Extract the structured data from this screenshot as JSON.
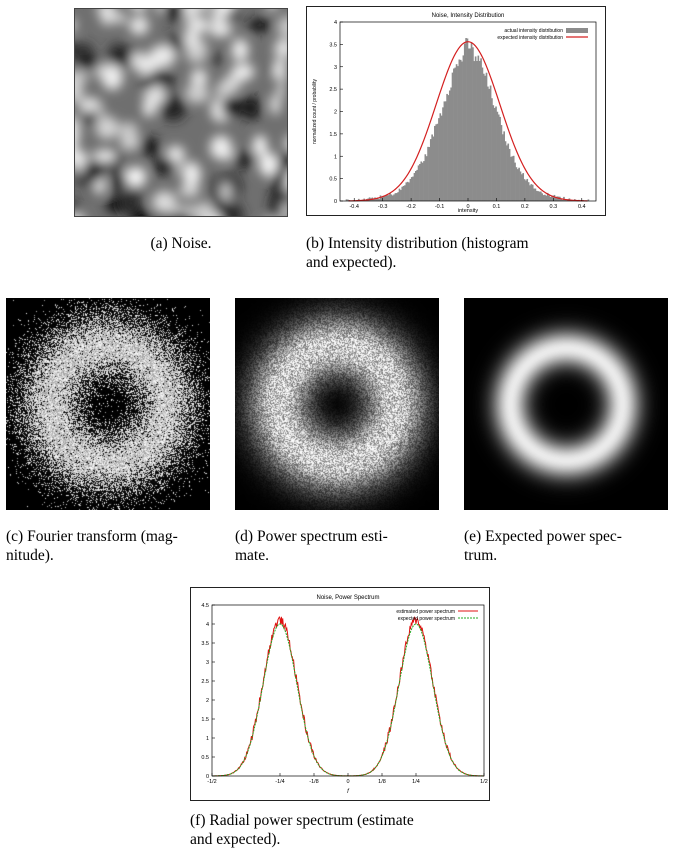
{
  "captions": {
    "a": "(a) Noise.",
    "b_line1": "(b) Intensity distribution (histogram",
    "b_line2": "and expected).",
    "c_line1": "(c) Fourier transform (mag-",
    "c_line2": "nitude).",
    "d_line1": "(d) Power spectrum esti-",
    "d_line2": "mate.",
    "e_line1": "(e) Expected power spec-",
    "e_line2": "trum.",
    "f_line1": "(f) Radial power spectrum (estimate",
    "f_line2": "and expected)."
  },
  "colors": {
    "histogram_fill": "#8c8c8c",
    "expected_curve": "#d42020",
    "estimated_curve": "#e01010",
    "expected_green": "#22aa22",
    "panel_background": "#000000"
  },
  "chart_data": [
    {
      "type": "bar",
      "title": "Noise, Intensity Distribution",
      "xlabel": "intensity",
      "ylabel": "normalized count / probability",
      "xlim": [
        -0.45,
        0.45
      ],
      "ylim": [
        0,
        4
      ],
      "xticks": [
        "-0.4",
        "-0.3",
        "-0.2",
        "-0.1",
        "0",
        "0.1",
        "0.2",
        "0.3",
        "0.4"
      ],
      "yticks": [
        "0",
        "0.5",
        "1",
        "1.5",
        "2",
        "2.5",
        "3",
        "3.5",
        "4"
      ],
      "legend_position": "top-right",
      "series": [
        {
          "name": "actual intensity distribution",
          "kind": "histogram",
          "x": [
            -0.4,
            -0.35,
            -0.3,
            -0.25,
            -0.2,
            -0.15,
            -0.1,
            -0.05,
            0,
            0.05,
            0.1,
            0.15,
            0.2,
            0.25,
            0.3,
            0.35,
            0.4
          ],
          "values": [
            0.0,
            0.04,
            0.1,
            0.18,
            0.5,
            1.0,
            1.9,
            2.9,
            3.5,
            3.0,
            2.0,
            1.05,
            0.5,
            0.2,
            0.1,
            0.04,
            0.0
          ]
        },
        {
          "name": "expected intensity distribution",
          "kind": "curve",
          "mean": 0,
          "std": 0.112,
          "peak": 3.56
        }
      ]
    },
    {
      "type": "line",
      "title": "Noise, Power Spectrum",
      "xlabel": "f",
      "ylabel": "",
      "xlim": [
        -0.5,
        0.5
      ],
      "ylim": [
        0,
        4.5
      ],
      "xticks": [
        "-1/2",
        "-1/4",
        "-1/8",
        "0",
        "1/8",
        "1/4",
        "1/2"
      ],
      "yticks": [
        "0",
        "0.5",
        "1",
        "1.5",
        "2",
        "2.5",
        "3",
        "3.5",
        "4",
        "4.5"
      ],
      "legend_position": "top-right",
      "series": [
        {
          "name": "estimated power spectrum",
          "peaks": [
            -0.25,
            0.25
          ],
          "peak_value": 4.1,
          "width": 0.062
        },
        {
          "name": "expected power spectrum",
          "peaks": [
            -0.25,
            0.25
          ],
          "peak_value": 4.0,
          "width": 0.062
        }
      ]
    }
  ]
}
